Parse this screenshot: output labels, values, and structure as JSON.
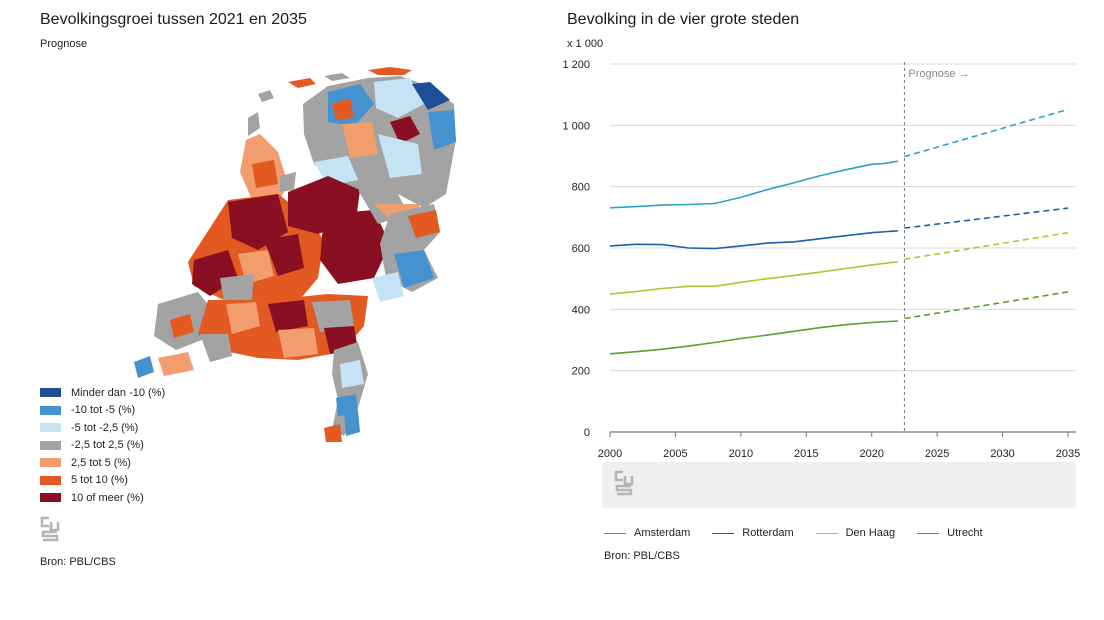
{
  "left_panel": {
    "title": "Bevolkingsgroei tussen 2021 en 2035",
    "subtitle": "Prognose",
    "legend": [
      {
        "label": "Minder dan -10 (%)",
        "color": "#1f4e96"
      },
      {
        "label": "-10 tot -5 (%)",
        "color": "#4592d0"
      },
      {
        "label": "-5 tot -2,5 (%)",
        "color": "#c5e3f5"
      },
      {
        "label": "-2,5 tot 2,5 (%)",
        "color": "#a3a3a3"
      },
      {
        "label": "2,5 tot 5 (%)",
        "color": "#f29d6e"
      },
      {
        "label": "5 tot 10 (%)",
        "color": "#e25a22"
      },
      {
        "label": "10 of meer (%)",
        "color": "#8b0f23"
      }
    ],
    "source": "Bron: PBL/CBS"
  },
  "chart_data": {
    "type": "line",
    "title": "Bevolking in de vier grote steden",
    "ylabel": "x 1 000",
    "xlabel": "",
    "ylim": [
      0,
      1200
    ],
    "xlim": [
      2000,
      2035
    ],
    "yticks": [
      "0",
      "200",
      "400",
      "600",
      "800",
      "1 000",
      "1 200"
    ],
    "ytick_values": [
      0,
      200,
      400,
      600,
      800,
      1000,
      1200
    ],
    "xticks": [
      "2000",
      "2005",
      "2010",
      "2015",
      "2020",
      "2025",
      "2030",
      "2035"
    ],
    "xtick_values": [
      2000,
      2005,
      2010,
      2015,
      2020,
      2025,
      2030,
      2035
    ],
    "forecast_start": 2022.5,
    "forecast_label": "Prognose →",
    "source": "Bron: PBL/CBS",
    "series": [
      {
        "name": "Amsterdam",
        "color": "#2ba3c8",
        "actual": {
          "x": [
            2000,
            2002,
            2004,
            2006,
            2008,
            2010,
            2012,
            2014,
            2016,
            2018,
            2020,
            2021,
            2022
          ],
          "y": [
            731,
            735,
            740,
            742,
            745,
            765,
            790,
            812,
            835,
            855,
            873,
            876,
            883
          ]
        },
        "forecast": {
          "x": [
            2022.5,
            2035
          ],
          "y": [
            898,
            1052
          ]
        }
      },
      {
        "name": "Rotterdam",
        "color": "#1e5ea8",
        "actual": {
          "x": [
            2000,
            2002,
            2004,
            2006,
            2008,
            2010,
            2012,
            2014,
            2016,
            2018,
            2020,
            2022
          ],
          "y": [
            607,
            612,
            611,
            600,
            598,
            607,
            616,
            620,
            630,
            640,
            650,
            656
          ]
        },
        "forecast": {
          "x": [
            2022.5,
            2035
          ],
          "y": [
            665,
            730
          ]
        }
      },
      {
        "name": "Den Haag",
        "color": "#a9c92c",
        "actual": {
          "x": [
            2000,
            2002,
            2004,
            2006,
            2008,
            2010,
            2012,
            2014,
            2016,
            2018,
            2020,
            2022
          ],
          "y": [
            450,
            458,
            468,
            475,
            475,
            488,
            500,
            510,
            521,
            533,
            545,
            555
          ]
        },
        "forecast": {
          "x": [
            2022.5,
            2035
          ],
          "y": [
            563,
            650
          ]
        }
      },
      {
        "name": "Utrecht",
        "color": "#5f9e2f",
        "actual": {
          "x": [
            2000,
            2002,
            2004,
            2006,
            2008,
            2010,
            2012,
            2014,
            2016,
            2018,
            2020,
            2022
          ],
          "y": [
            255,
            262,
            270,
            280,
            292,
            305,
            316,
            328,
            340,
            350,
            357,
            362
          ]
        },
        "forecast": {
          "x": [
            2022.5,
            2035
          ],
          "y": [
            370,
            457
          ]
        }
      }
    ]
  }
}
